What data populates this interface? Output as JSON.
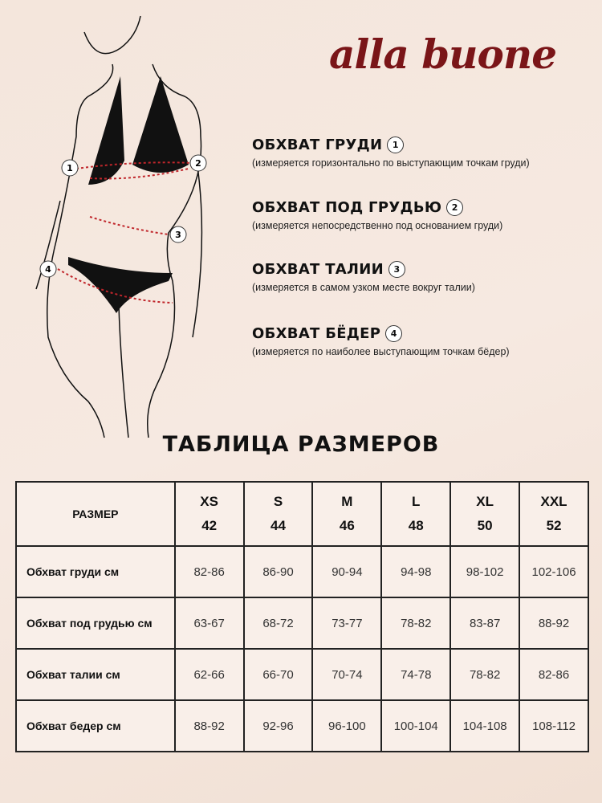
{
  "brand": {
    "logo": "alla buone",
    "color": "#7a1518"
  },
  "measurements": [
    {
      "num": "1",
      "title": "ОБХВАТ ГРУДИ",
      "desc": "(измеряется горизонтально по выступающим точкам груди)"
    },
    {
      "num": "2",
      "title": "ОБХВАТ ПОД ГРУДЬЮ",
      "desc": "(измеряется непосредственно под основанием груди)"
    },
    {
      "num": "3",
      "title": "ОБХВАТ ТАЛИИ",
      "desc": "(измеряется в самом узком месте вокруг талии)"
    },
    {
      "num": "4",
      "title": "ОБХВАТ БЁДЕР",
      "desc": "(измеряется по наиболее выступающим точкам бёдер)"
    }
  ],
  "table": {
    "title": "ТАБЛИЦА РАЗМЕРОВ",
    "header_label": "РАЗМЕР",
    "sizes": [
      {
        "l": "XS",
        "n": "42"
      },
      {
        "l": "S",
        "n": "44"
      },
      {
        "l": "M",
        "n": "46"
      },
      {
        "l": "L",
        "n": "48"
      },
      {
        "l": "XL",
        "n": "50"
      },
      {
        "l": "XXL",
        "n": "52"
      }
    ],
    "rows": [
      {
        "label": "Обхват груди см",
        "values": [
          "82-86",
          "86-90",
          "90-94",
          "94-98",
          "98-102",
          "102-106"
        ]
      },
      {
        "label": "Обхват под грудью  см",
        "values": [
          "63-67",
          "68-72",
          "73-77",
          "78-82",
          "83-87",
          "88-92"
        ]
      },
      {
        "label": "Обхват талии см",
        "values": [
          "62-66",
          "66-70",
          "70-74",
          "74-78",
          "78-82",
          "82-86"
        ]
      },
      {
        "label": "Обхват бедер см",
        "values": [
          "88-92",
          "92-96",
          "96-100",
          "100-104",
          "104-108",
          "108-112"
        ]
      }
    ]
  }
}
